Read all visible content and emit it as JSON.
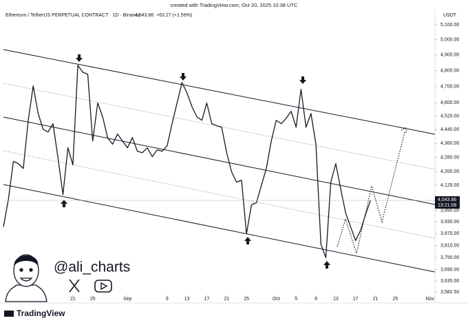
{
  "header": {
    "created": "created with TradingView.com, Oct 20, 2025 10:38 UTC"
  },
  "chart_data": {
    "type": "line",
    "title": "Ethereum / TetherUS PERPETUAL CONTRACT · 1D · Binance",
    "legend_price": "4,043.86",
    "legend_change": "+63.27 (+1.59%)",
    "currency": "USDT",
    "price_label": "4,043.86",
    "countdown": "13:21:08",
    "color": "#131722",
    "log_scale": true,
    "grid": false,
    "x": [
      "2025-08-07",
      "2025-08-08",
      "2025-08-09",
      "2025-08-10",
      "2025-08-11",
      "2025-08-12",
      "2025-08-13",
      "2025-08-14",
      "2025-08-15",
      "2025-08-16",
      "2025-08-17",
      "2025-08-18",
      "2025-08-19",
      "2025-08-20",
      "2025-08-21",
      "2025-08-22",
      "2025-08-23",
      "2025-08-24",
      "2025-08-25",
      "2025-08-26",
      "2025-08-27",
      "2025-08-28",
      "2025-08-29",
      "2025-08-30",
      "2025-08-31",
      "2025-09-01",
      "2025-09-02",
      "2025-09-03",
      "2025-09-04",
      "2025-09-05",
      "2025-09-06",
      "2025-09-07",
      "2025-09-08",
      "2025-09-09",
      "2025-09-10",
      "2025-09-11",
      "2025-09-12",
      "2025-09-13",
      "2025-09-14",
      "2025-09-15",
      "2025-09-16",
      "2025-09-17",
      "2025-09-18",
      "2025-09-19",
      "2025-09-20",
      "2025-09-21",
      "2025-09-22",
      "2025-09-23",
      "2025-09-24",
      "2025-09-25",
      "2025-09-26",
      "2025-09-27",
      "2025-09-28",
      "2025-09-29",
      "2025-09-30",
      "2025-10-01",
      "2025-10-02",
      "2025-10-03",
      "2025-10-04",
      "2025-10-05",
      "2025-10-06",
      "2025-10-07",
      "2025-10-08",
      "2025-10-09",
      "2025-10-10",
      "2025-10-11",
      "2025-10-12",
      "2025-10-13",
      "2025-10-14",
      "2025-10-15",
      "2025-10-16",
      "2025-10-17",
      "2025-10-18",
      "2025-10-19",
      "2025-10-20"
    ],
    "values": [
      3905,
      4049,
      4257,
      4245,
      4218,
      4495,
      4704,
      4536,
      4442,
      4426,
      4475,
      4276,
      4075,
      4335,
      4238,
      4834,
      4790,
      4777,
      4374,
      4599,
      4516,
      4394,
      4355,
      4414,
      4374,
      4335,
      4394,
      4315,
      4307,
      4335,
      4284,
      4323,
      4315,
      4346,
      4475,
      4599,
      4725,
      4661,
      4577,
      4516,
      4495,
      4599,
      4475,
      4463,
      4454,
      4307,
      4199,
      4142,
      4153,
      3869,
      4020,
      4031,
      4124,
      4218,
      4374,
      4495,
      4475,
      4507,
      4549,
      4454,
      4683,
      4454,
      4536,
      4355,
      3817,
      3749,
      4142,
      4245,
      4105,
      3976,
      3905,
      3835,
      3887,
      3969,
      4043.86
    ],
    "xlim": [
      "2025-08-07",
      "2025-11-02"
    ],
    "xticks": [
      {
        "value": "2025-08-21",
        "label": "21"
      },
      {
        "value": "2025-08-25",
        "label": "25"
      },
      {
        "value": "2025-09-01",
        "label": "Sep"
      },
      {
        "value": "2025-09-09",
        "label": "9"
      },
      {
        "value": "2025-09-13",
        "label": "13"
      },
      {
        "value": "2025-09-17",
        "label": "17"
      },
      {
        "value": "2025-09-21",
        "label": "21"
      },
      {
        "value": "2025-09-25",
        "label": "25"
      },
      {
        "value": "2025-10-01",
        "label": "Oct"
      },
      {
        "value": "2025-10-05",
        "label": "5"
      },
      {
        "value": "2025-10-09",
        "label": "9"
      },
      {
        "value": "2025-10-13",
        "label": "13"
      },
      {
        "value": "2025-10-17",
        "label": "17"
      },
      {
        "value": "2025-10-21",
        "label": "21"
      },
      {
        "value": "2025-10-25",
        "label": "25"
      },
      {
        "value": "2025-11-01",
        "label": "Nov"
      }
    ],
    "ylim": [
      3570,
      5165
    ],
    "yticks": [
      {
        "value": 5100,
        "label": "5,100.00"
      },
      {
        "value": 5000,
        "label": "5,000.00"
      },
      {
        "value": 4900,
        "label": "4,900.00"
      },
      {
        "value": 4800,
        "label": "4,800.00"
      },
      {
        "value": 4700,
        "label": "4,700.00"
      },
      {
        "value": 4600,
        "label": "4,600.00"
      },
      {
        "value": 4520,
        "label": "4,520.00"
      },
      {
        "value": 4440,
        "label": "4,440.00"
      },
      {
        "value": 4360,
        "label": "4,360.00"
      },
      {
        "value": 4280,
        "label": "4,280.00"
      },
      {
        "value": 4200,
        "label": "4,200.00"
      },
      {
        "value": 4125,
        "label": "4,125.00"
      },
      {
        "value": 3990,
        "label": "3,990.00"
      },
      {
        "value": 3930,
        "label": "3,930.00"
      },
      {
        "value": 3870,
        "label": "3,870.00"
      },
      {
        "value": 3810,
        "label": "3,810.00"
      },
      {
        "value": 3750,
        "label": "3,750.00"
      },
      {
        "value": 3690,
        "label": "3,690.00"
      },
      {
        "value": 3635,
        "label": "3,635.00"
      },
      {
        "value": 3582.5,
        "label": "3,582.50"
      }
    ]
  },
  "branding": {
    "handle": "@ali_charts",
    "logo": "TradingView"
  }
}
